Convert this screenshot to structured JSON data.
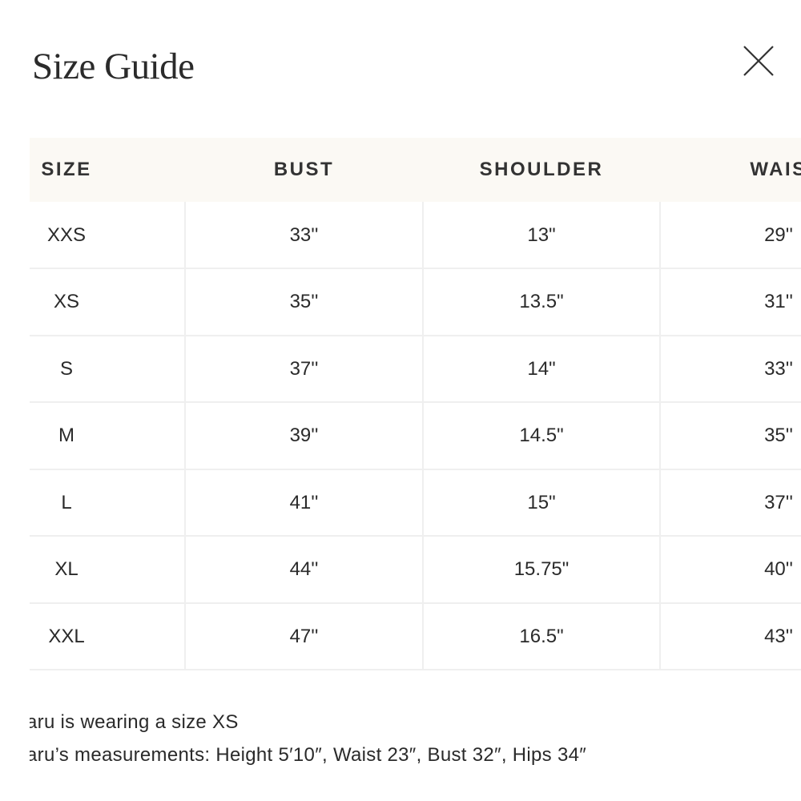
{
  "header": {
    "title": "Size Guide"
  },
  "table": {
    "columns": [
      "SIZE",
      "BUST",
      "SHOULDER",
      "WAIS"
    ],
    "rows": [
      [
        "XXS",
        "33''",
        "13\"",
        "29''"
      ],
      [
        "XS",
        "35''",
        "13.5\"",
        "31''"
      ],
      [
        "S",
        "37''",
        "14\"",
        "33''"
      ],
      [
        "M",
        "39''",
        "14.5\"",
        "35''"
      ],
      [
        "L",
        "41''",
        "15\"",
        "37''"
      ],
      [
        "XL",
        "44''",
        "15.75\"",
        "40''"
      ],
      [
        "XXL",
        "47''",
        "16.5\"",
        "43''"
      ]
    ]
  },
  "notes": [
    "aru is wearing a size XS",
    "aru’s measurements: Height 5′10″, Waist 23″, Bust 32″, Hips 34″"
  ]
}
